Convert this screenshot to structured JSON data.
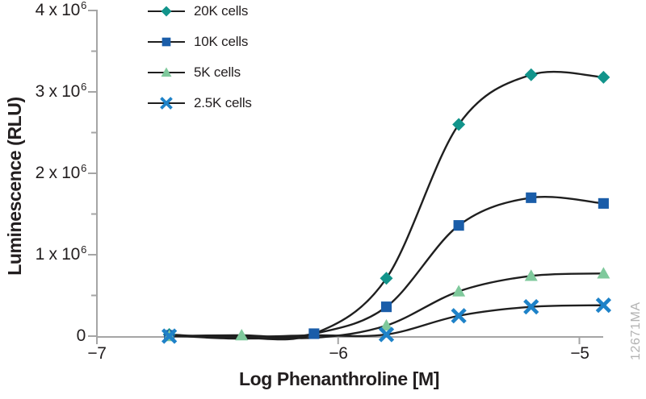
{
  "watermark": "12671MA",
  "chart_data": {
    "type": "line",
    "title": "",
    "xlabel": "Log Phenanthroline [M]",
    "ylabel": "Luminescence (RLU)",
    "xlim": [
      -7,
      -4.88
    ],
    "ylim": [
      0,
      4000000
    ],
    "grid": false,
    "legend_position": "top-left",
    "axis_color": "#a5a5a5",
    "curve_color": "#1f1f1f",
    "x": [
      -6.7,
      -6.4,
      -6.1,
      -5.8,
      -5.5,
      -5.2,
      -4.9
    ],
    "series": [
      {
        "name": "20K cells",
        "marker": "diamond",
        "color": "#12948b",
        "values": [
          20000,
          -20000,
          30000,
          710000,
          2600000,
          3210000,
          3180000
        ],
        "marker_indices": [
          0,
          3,
          4,
          5,
          6
        ]
      },
      {
        "name": "10K cells",
        "marker": "square",
        "color": "#1a5da9",
        "values": [
          10000,
          -30000,
          30000,
          360000,
          1360000,
          1700000,
          1630000
        ],
        "marker_indices": [
          0,
          2,
          3,
          4,
          5,
          6
        ]
      },
      {
        "name": "5K cells",
        "marker": "triangle",
        "color": "#7fc99c",
        "values": [
          0,
          10000,
          -20000,
          130000,
          550000,
          740000,
          770000
        ],
        "marker_indices": [
          0,
          1,
          3,
          4,
          5,
          6
        ]
      },
      {
        "name": "2.5K cells",
        "marker": "x",
        "color": "#1e82c8",
        "values": [
          0,
          -10000,
          10000,
          20000,
          250000,
          360000,
          380000
        ],
        "marker_indices": [
          0,
          3,
          4,
          5,
          6
        ]
      }
    ],
    "yticks": [
      {
        "value": 4000000,
        "base": "4 x 10",
        "exp": "6"
      },
      {
        "value": 3000000,
        "base": "3 x 10",
        "exp": "6"
      },
      {
        "value": 2000000,
        "base": "2 x 10",
        "exp": "6"
      },
      {
        "value": 1000000,
        "base": "1 x 10",
        "exp": "6"
      },
      {
        "value": 0,
        "base": "0",
        "exp": ""
      }
    ],
    "y_minor_tick_step": 500000,
    "xticks": [
      {
        "value": -7,
        "label": "−7"
      },
      {
        "value": -6,
        "label": "−6"
      },
      {
        "value": -5,
        "label": "−5"
      }
    ]
  }
}
